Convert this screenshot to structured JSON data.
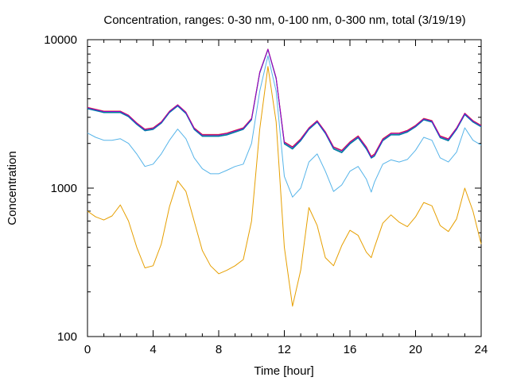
{
  "chart_data": {
    "type": "line",
    "title": "Concentration, ranges: 0-30 nm, 0-100 nm, 0-300 nm, total (3/19/19)",
    "xlabel": "Time [hour]",
    "ylabel": "Concentration",
    "xlim": [
      0,
      24
    ],
    "ylim": [
      100,
      10000
    ],
    "yscale": "log",
    "grid": false,
    "x_ticks": [
      0,
      4,
      8,
      12,
      16,
      20,
      24
    ],
    "x_tick_labels": [
      "0",
      "4",
      "8",
      "12",
      "16",
      "20",
      "24"
    ],
    "y_ticks": [
      100,
      1000,
      10000
    ],
    "y_tick_labels": [
      "100",
      "1000",
      "10000"
    ],
    "series": [
      {
        "color": "#e69f00",
        "x": [
          0,
          0.5,
          1,
          1.5,
          2,
          2.5,
          3,
          3.5,
          4,
          4.5,
          5,
          5.5,
          6,
          6.5,
          7,
          7.5,
          8,
          8.5,
          9,
          9.5,
          10,
          10.5,
          11,
          11.5,
          12,
          12.5,
          13,
          13.5,
          14,
          14.5,
          15,
          15.5,
          16,
          16.5,
          17,
          17.3,
          17.5,
          18,
          18.5,
          19,
          19.5,
          20,
          20.5,
          21,
          21.5,
          22,
          22.5,
          23,
          23.5,
          24
        ],
        "y": [
          700,
          640,
          610,
          650,
          770,
          600,
          400,
          290,
          300,
          420,
          750,
          1120,
          950,
          600,
          380,
          300,
          265,
          280,
          300,
          330,
          600,
          2500,
          6600,
          2800,
          400,
          160,
          280,
          740,
          560,
          340,
          300,
          410,
          520,
          480,
          370,
          340,
          400,
          580,
          660,
          590,
          550,
          640,
          800,
          760,
          560,
          510,
          620,
          1000,
          700,
          420
        ]
      },
      {
        "color": "#56b4e9",
        "x": [
          0,
          0.5,
          1,
          1.5,
          2,
          2.5,
          3,
          3.5,
          4,
          4.5,
          5,
          5.5,
          6,
          6.5,
          7,
          7.5,
          8,
          8.5,
          9,
          9.5,
          10,
          10.5,
          11,
          11.5,
          12,
          12.5,
          13,
          13.5,
          14,
          14.5,
          15,
          15.5,
          16,
          16.5,
          17,
          17.3,
          17.5,
          18,
          18.5,
          19,
          19.5,
          20,
          20.5,
          21,
          21.5,
          22,
          22.5,
          23,
          23.5,
          24
        ],
        "y": [
          2350,
          2200,
          2100,
          2100,
          2150,
          2000,
          1700,
          1400,
          1450,
          1700,
          2100,
          2500,
          2150,
          1600,
          1350,
          1250,
          1250,
          1320,
          1400,
          1450,
          2000,
          4500,
          7800,
          4500,
          1200,
          870,
          1000,
          1500,
          1700,
          1300,
          950,
          1050,
          1300,
          1400,
          1150,
          940,
          1100,
          1450,
          1550,
          1500,
          1560,
          1800,
          2200,
          2100,
          1600,
          1500,
          1750,
          2550,
          2100,
          1950
        ]
      },
      {
        "color": "#009e73",
        "x": [
          0,
          0.5,
          1,
          1.5,
          2,
          2.5,
          3,
          3.5,
          4,
          4.5,
          5,
          5.5,
          6,
          6.5,
          7,
          7.5,
          8,
          8.5,
          9,
          9.5,
          10,
          10.5,
          11,
          11.5,
          12,
          12.5,
          13,
          13.5,
          14,
          14.5,
          15,
          15.5,
          16,
          16.5,
          17,
          17.3,
          17.5,
          18,
          18.5,
          19,
          19.5,
          20,
          20.5,
          21,
          21.5,
          22,
          22.5,
          23,
          23.5,
          24
        ],
        "y": [
          3450,
          3350,
          3250,
          3250,
          3250,
          3050,
          2700,
          2450,
          2500,
          2750,
          3250,
          3600,
          3200,
          2500,
          2250,
          2250,
          2250,
          2300,
          2400,
          2500,
          2900,
          6000,
          8600,
          5500,
          2000,
          1850,
          2100,
          2500,
          2800,
          2350,
          1850,
          1750,
          2000,
          2200,
          1850,
          1600,
          1650,
          2100,
          2300,
          2300,
          2400,
          2600,
          2900,
          2800,
          2200,
          2100,
          2500,
          3150,
          2800,
          2600
        ]
      },
      {
        "color": "#0072b2",
        "x": [
          0,
          0.5,
          1,
          1.5,
          2,
          2.5,
          3,
          3.5,
          4,
          4.5,
          5,
          5.5,
          6,
          6.5,
          7,
          7.5,
          8,
          8.5,
          9,
          9.5,
          10,
          10.5,
          11,
          11.5,
          12,
          12.5,
          13,
          13.5,
          14,
          14.5,
          15,
          15.5,
          16,
          16.5,
          17,
          17.3,
          17.5,
          18,
          18.5,
          19,
          19.5,
          20,
          20.5,
          21,
          21.5,
          22,
          22.5,
          23,
          23.5,
          24
        ],
        "y": [
          3420,
          3320,
          3220,
          3220,
          3220,
          3020,
          2680,
          2430,
          2480,
          2730,
          3220,
          3570,
          3170,
          2480,
          2230,
          2230,
          2230,
          2280,
          2380,
          2480,
          2880,
          5950,
          8550,
          5450,
          1980,
          1830,
          2080,
          2480,
          2780,
          2330,
          1830,
          1730,
          1980,
          2180,
          1830,
          1590,
          1640,
          2080,
          2280,
          2280,
          2380,
          2580,
          2880,
          2780,
          2180,
          2080,
          2480,
          3120,
          2780,
          2580
        ]
      },
      {
        "color": "#e51e10",
        "x": [
          0,
          0.5,
          1,
          1.5,
          2,
          2.5,
          3,
          3.5,
          4,
          4.5,
          5,
          5.5,
          6,
          6.5,
          7,
          7.5,
          8,
          8.5,
          9,
          9.5,
          10,
          10.5,
          11,
          11.5,
          12,
          12.5,
          13,
          13.5,
          14,
          14.5,
          15,
          15.5,
          16,
          16.5,
          17,
          17.3,
          17.5,
          18,
          18.5,
          19,
          19.5,
          20,
          20.5,
          21,
          21.5,
          22,
          22.5,
          23,
          23.5,
          24
        ],
        "y": [
          3500,
          3400,
          3300,
          3300,
          3300,
          3100,
          2750,
          2500,
          2550,
          2800,
          3300,
          3650,
          3250,
          2550,
          2300,
          2300,
          2300,
          2350,
          2450,
          2550,
          2950,
          6050,
          8650,
          5550,
          2050,
          1900,
          2150,
          2550,
          2850,
          2400,
          1900,
          1800,
          2050,
          2250,
          1900,
          1640,
          1700,
          2150,
          2350,
          2350,
          2450,
          2650,
          2950,
          2850,
          2250,
          2150,
          2550,
          3200,
          2850,
          2650
        ]
      },
      {
        "color": "#9400d3",
        "x": [
          0,
          0.5,
          1,
          1.5,
          2,
          2.5,
          3,
          3.5,
          4,
          4.5,
          5,
          5.5,
          6,
          6.5,
          7,
          7.5,
          8,
          8.5,
          9,
          9.5,
          10,
          10.5,
          11,
          11.5,
          12,
          12.5,
          13,
          13.5,
          14,
          14.5,
          15,
          15.5,
          16,
          16.5,
          17,
          17.3,
          17.5,
          18,
          18.5,
          19,
          19.5,
          20,
          20.5,
          21,
          21.5,
          22,
          22.5,
          23,
          23.5,
          24
        ],
        "y": [
          3480,
          3380,
          3280,
          3280,
          3280,
          3080,
          2730,
          2480,
          2530,
          2780,
          3280,
          3630,
          3230,
          2530,
          2280,
          2280,
          2280,
          2330,
          2430,
          2530,
          2930,
          6030,
          8630,
          5530,
          2030,
          1880,
          2130,
          2530,
          2830,
          2380,
          1880,
          1780,
          2030,
          2230,
          1880,
          1620,
          1680,
          2130,
          2330,
          2330,
          2430,
          2630,
          2930,
          2830,
          2230,
          2130,
          2530,
          3180,
          2830,
          2630
        ]
      }
    ]
  }
}
